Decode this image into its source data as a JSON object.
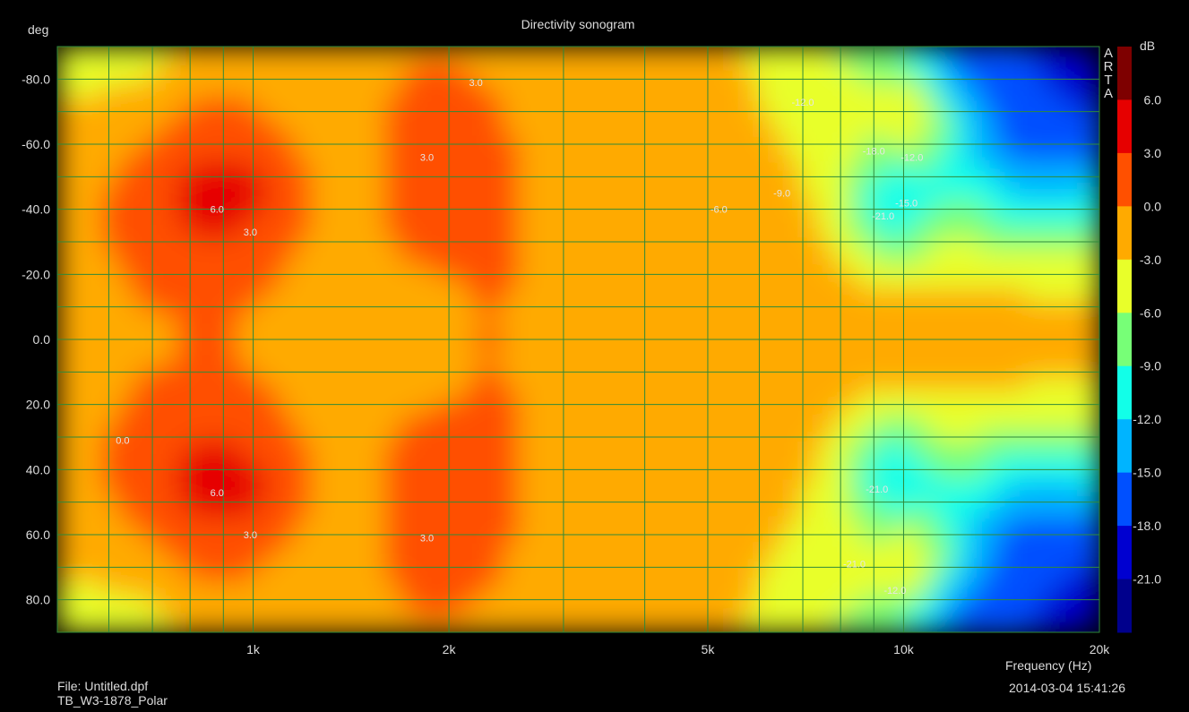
{
  "chart_data": {
    "type": "heatmap",
    "title": "Directivity sonogram",
    "ylabel": "deg",
    "xlabel": "Frequency (Hz)",
    "x_scale": "log",
    "xlim": [
      500,
      20000
    ],
    "ylim": [
      -90,
      90
    ],
    "y_inverted": true,
    "x_ticks": [
      "1k",
      "2k",
      "5k",
      "10k",
      "20k"
    ],
    "x_tick_values": [
      1000,
      2000,
      5000,
      10000,
      20000
    ],
    "y_ticks": [
      "-80.0",
      "-60.0",
      "-40.0",
      "-20.0",
      "0.0",
      "20.0",
      "40.0",
      "60.0",
      "80.0"
    ],
    "y_tick_values": [
      -80,
      -60,
      -40,
      -20,
      0,
      20,
      40,
      60,
      80
    ],
    "colorbar": {
      "unit": "dB",
      "levels": [
        "6.0",
        "3.0",
        "0.0",
        "-3.0",
        "-6.0",
        "-9.0",
        "-12.0",
        "-15.0",
        "-18.0",
        "-21.0"
      ],
      "colors": [
        "#7e0000",
        "#e60000",
        "#ff5000",
        "#ffaa00",
        "#e8ff2a",
        "#77ff77",
        "#12ffe8",
        "#00b4ff",
        "#0050ff",
        "#0000d0",
        "#00008c"
      ]
    },
    "contour_labels": [
      {
        "text": "6.0",
        "freq": 880,
        "angle": -40
      },
      {
        "text": "3.0",
        "freq": 990,
        "angle": -33
      },
      {
        "text": "3.0",
        "freq": 1850,
        "angle": -56
      },
      {
        "text": "3.0",
        "freq": 2200,
        "angle": -79
      },
      {
        "text": "-12.0",
        "freq": 7000,
        "angle": -73
      },
      {
        "text": "-18.0",
        "freq": 9000,
        "angle": -58
      },
      {
        "text": "-12.0",
        "freq": 10300,
        "angle": -56
      },
      {
        "text": "-9.0",
        "freq": 6500,
        "angle": -45
      },
      {
        "text": "-6.0",
        "freq": 5200,
        "angle": -40
      },
      {
        "text": "-15.0",
        "freq": 10100,
        "angle": -42
      },
      {
        "text": "-21.0",
        "freq": 9300,
        "angle": -38
      },
      {
        "text": "0.0",
        "freq": 630,
        "angle": 31
      },
      {
        "text": "6.0",
        "freq": 880,
        "angle": 47
      },
      {
        "text": "3.0",
        "freq": 990,
        "angle": 60
      },
      {
        "text": "3.0",
        "freq": 1850,
        "angle": 61
      },
      {
        "text": "-21.0",
        "freq": 9100,
        "angle": 46
      },
      {
        "text": "-21.0",
        "freq": 8400,
        "angle": 69
      },
      {
        "text": "-12.0",
        "freq": 9700,
        "angle": 77
      }
    ]
  },
  "branding": "ARTA",
  "footer": {
    "file": "File: Untitled.dpf",
    "name": "TB_W3-1878_Polar",
    "timestamp": "2014-03-04  15:41:26"
  }
}
